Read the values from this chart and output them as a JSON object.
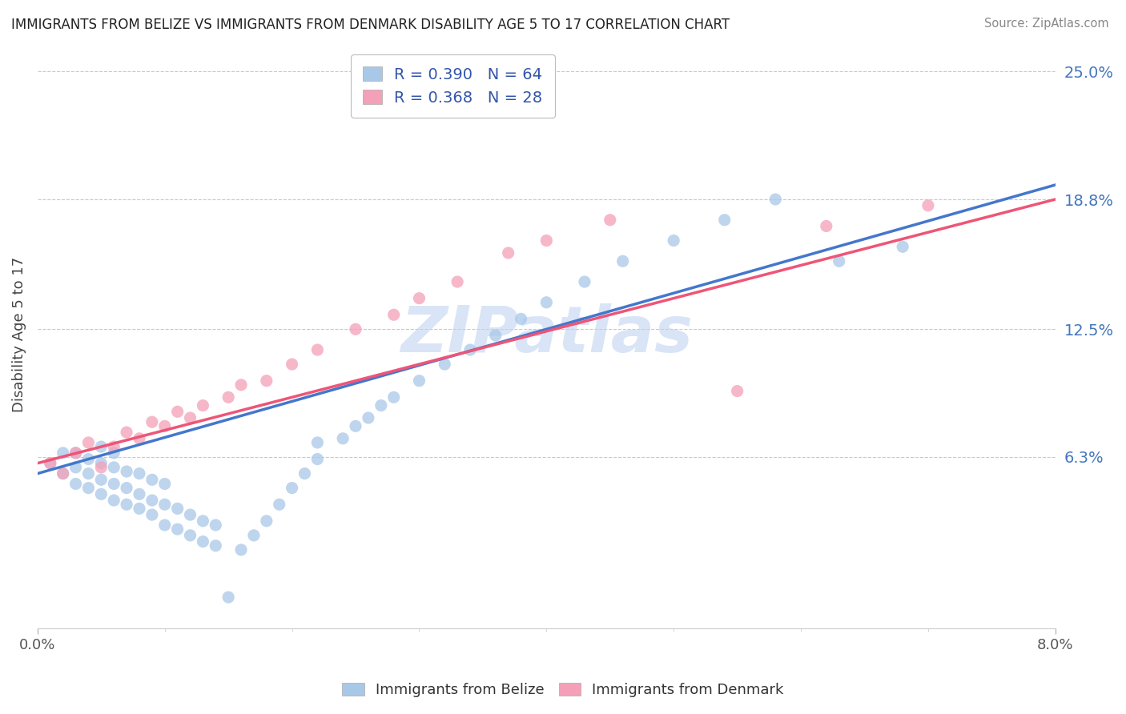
{
  "title": "IMMIGRANTS FROM BELIZE VS IMMIGRANTS FROM DENMARK DISABILITY AGE 5 TO 17 CORRELATION CHART",
  "source": "Source: ZipAtlas.com",
  "ylabel": "Disability Age 5 to 17",
  "xlim": [
    0.0,
    0.08
  ],
  "ylim": [
    -0.02,
    0.265
  ],
  "ytick_values": [
    0.063,
    0.125,
    0.188,
    0.25
  ],
  "ytick_labels": [
    "6.3%",
    "12.5%",
    "18.8%",
    "25.0%"
  ],
  "belize_color": "#a8c8e8",
  "denmark_color": "#f4a0b8",
  "belize_line_color": "#4477cc",
  "denmark_line_color": "#ee5577",
  "watermark": "ZIPatlas",
  "watermark_color": "#c0d4f0",
  "R_belize": 0.39,
  "N_belize": 64,
  "R_denmark": 0.368,
  "N_denmark": 28,
  "belize_scatter_x": [
    0.001,
    0.002,
    0.002,
    0.003,
    0.003,
    0.003,
    0.004,
    0.004,
    0.004,
    0.005,
    0.005,
    0.005,
    0.005,
    0.006,
    0.006,
    0.006,
    0.006,
    0.007,
    0.007,
    0.007,
    0.008,
    0.008,
    0.008,
    0.009,
    0.009,
    0.009,
    0.01,
    0.01,
    0.01,
    0.011,
    0.011,
    0.012,
    0.012,
    0.013,
    0.013,
    0.014,
    0.014,
    0.015,
    0.016,
    0.017,
    0.018,
    0.019,
    0.02,
    0.021,
    0.022,
    0.022,
    0.024,
    0.025,
    0.026,
    0.027,
    0.028,
    0.03,
    0.032,
    0.034,
    0.036,
    0.038,
    0.04,
    0.043,
    0.046,
    0.05,
    0.054,
    0.058,
    0.063,
    0.068
  ],
  "belize_scatter_y": [
    0.06,
    0.055,
    0.065,
    0.05,
    0.058,
    0.065,
    0.048,
    0.055,
    0.062,
    0.045,
    0.052,
    0.06,
    0.068,
    0.042,
    0.05,
    0.058,
    0.065,
    0.04,
    0.048,
    0.056,
    0.038,
    0.045,
    0.055,
    0.035,
    0.042,
    0.052,
    0.03,
    0.04,
    0.05,
    0.028,
    0.038,
    0.025,
    0.035,
    0.022,
    0.032,
    0.02,
    0.03,
    -0.005,
    0.018,
    0.025,
    0.032,
    0.04,
    0.048,
    0.055,
    0.062,
    0.07,
    0.072,
    0.078,
    0.082,
    0.088,
    0.092,
    0.1,
    0.108,
    0.115,
    0.122,
    0.13,
    0.138,
    0.148,
    0.158,
    0.168,
    0.178,
    0.188,
    0.158,
    0.165
  ],
  "denmark_scatter_x": [
    0.001,
    0.002,
    0.003,
    0.004,
    0.005,
    0.006,
    0.007,
    0.008,
    0.009,
    0.01,
    0.011,
    0.012,
    0.013,
    0.015,
    0.016,
    0.018,
    0.02,
    0.022,
    0.025,
    0.028,
    0.03,
    0.033,
    0.037,
    0.04,
    0.045,
    0.055,
    0.062,
    0.07
  ],
  "denmark_scatter_y": [
    0.06,
    0.055,
    0.065,
    0.07,
    0.058,
    0.068,
    0.075,
    0.072,
    0.08,
    0.078,
    0.085,
    0.082,
    0.088,
    0.092,
    0.098,
    0.1,
    0.108,
    0.115,
    0.125,
    0.132,
    0.14,
    0.148,
    0.162,
    0.168,
    0.178,
    0.095,
    0.175,
    0.185
  ],
  "belize_intercept": 0.055,
  "belize_slope": 1.75,
  "denmark_intercept": 0.06,
  "denmark_slope": 1.6
}
